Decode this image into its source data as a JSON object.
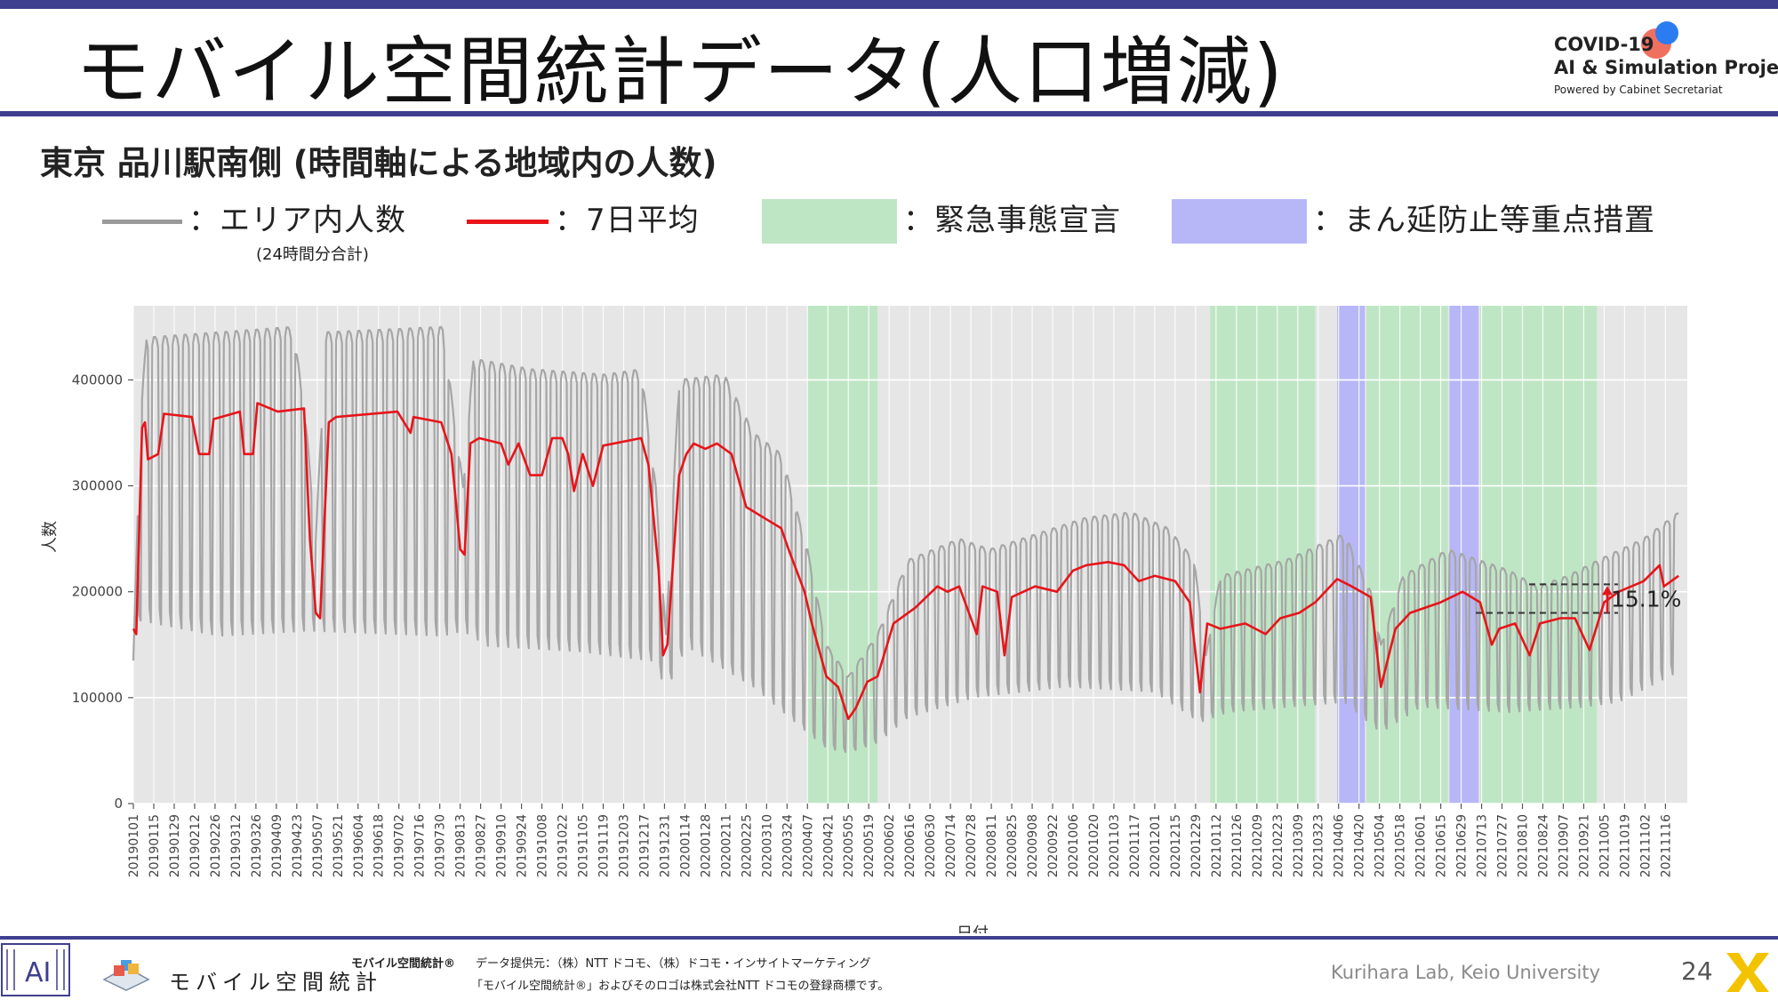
{
  "header": {
    "title": "モバイル空間統計データ(人口増減)",
    "logo_line1": "COVID-19",
    "logo_line2": "AI & Simulation Project",
    "logo_line3": "Powered by Cabinet Secretariat"
  },
  "subtitle": "東京 品川駅南側 (時間軸による地域内の人数)",
  "legend": {
    "area_label": "：エリア内人数",
    "area_sub": "(24時間分合計)",
    "avg_label": "：7日平均",
    "emergency_label": "：緊急事態宣言",
    "priority_label": "：まん延防止等重点措置"
  },
  "colors": {
    "raw_series": "#a6a6a6",
    "avg_series": "#e8141a",
    "emergency": "#bfe6c4",
    "priority": "#b7b7f7",
    "panel": "#e6e6e6",
    "accent": "#3f3f8f"
  },
  "footer": {
    "brand": "モバイル空間統計",
    "brand_small": "モバイル空間統計®",
    "provider": "データ提供元：（株）NTT ドコモ、（株）ドコモ・インサイトマーケティング",
    "trademark": "「モバイル空間統計®」およびそのロゴは株式会社NTT ドコモの登録商標です。",
    "lab": "Kurihara Lab, Keio University",
    "page": "24"
  },
  "chart_data": {
    "type": "line",
    "xlabel": "日付",
    "ylabel": "人数",
    "ylim": [
      0,
      470000
    ],
    "xlim": [
      "20190101",
      "20211201"
    ],
    "yticks": [
      0,
      100000,
      200000,
      300000,
      400000
    ],
    "ytick_labels": [
      "0",
      "100000",
      "200000",
      "300000",
      "400000"
    ],
    "x_tick_labels": [
      "20190101",
      "20190115",
      "20190129",
      "20190212",
      "20190226",
      "20190312",
      "20190326",
      "20190409",
      "20190423",
      "20190507",
      "20190521",
      "20190604",
      "20190618",
      "20190702",
      "20190716",
      "20190730",
      "20190813",
      "20190827",
      "20190910",
      "20190924",
      "20191008",
      "20191022",
      "20191105",
      "20191119",
      "20191203",
      "20191217",
      "20191231",
      "20200114",
      "20200128",
      "20200211",
      "20200225",
      "20200310",
      "20200324",
      "20200407",
      "20200421",
      "20200505",
      "20200519",
      "20200602",
      "20200616",
      "20200630",
      "20200714",
      "20200728",
      "20200811",
      "20200825",
      "20200908",
      "20200922",
      "20201006",
      "20201020",
      "20201103",
      "20201117",
      "20201201",
      "20201215",
      "20201229",
      "20210112",
      "20210126",
      "20210209",
      "20210223",
      "20210309",
      "20210323",
      "20210406",
      "20210420",
      "20210504",
      "20210518",
      "20210601",
      "20210615",
      "20210629",
      "20210713",
      "20210727",
      "20210810",
      "20210824",
      "20210907",
      "20210921",
      "20211005",
      "20211019",
      "20211102",
      "20211116"
    ],
    "grid": true,
    "shaded_periods": [
      {
        "type": "emergency",
        "start": "20200407",
        "end": "20200525"
      },
      {
        "type": "emergency",
        "start": "20210108",
        "end": "20210321"
      },
      {
        "type": "priority",
        "start": "20210405",
        "end": "20210424"
      },
      {
        "type": "emergency",
        "start": "20210425",
        "end": "20210620"
      },
      {
        "type": "priority",
        "start": "20210621",
        "end": "20210711"
      },
      {
        "type": "emergency",
        "start": "20210712",
        "end": "20210930"
      }
    ],
    "series": [
      {
        "name": "エリア内人数",
        "pattern": "weekly",
        "weekday_envelope": [
          [
            "20190101",
            135000
          ],
          [
            "20190106",
            370000
          ],
          [
            "20190110",
            440000
          ],
          [
            "20190301",
            445000
          ],
          [
            "20190420",
            450000
          ],
          [
            "20190428",
            380000
          ],
          [
            "20190506",
            250000
          ],
          [
            "20190513",
            445000
          ],
          [
            "20190801",
            450000
          ],
          [
            "20190815",
            300000
          ],
          [
            "20190822",
            420000
          ],
          [
            "20191001",
            410000
          ],
          [
            "20191120",
            405000
          ],
          [
            "20191215",
            410000
          ],
          [
            "20191225",
            300000
          ],
          [
            "20200101",
            160000
          ],
          [
            "20200110",
            400000
          ],
          [
            "20200210",
            405000
          ],
          [
            "20200301",
            350000
          ],
          [
            "20200320",
            330000
          ],
          [
            "20200407",
            240000
          ],
          [
            "20200420",
            150000
          ],
          [
            "20200505",
            120000
          ],
          [
            "20200525",
            160000
          ],
          [
            "20200615",
            230000
          ],
          [
            "20200720",
            250000
          ],
          [
            "20200810",
            240000
          ],
          [
            "20200901",
            250000
          ],
          [
            "20201015",
            270000
          ],
          [
            "20201115",
            275000
          ],
          [
            "20201210",
            260000
          ],
          [
            "20201228",
            230000
          ],
          [
            "20210105",
            140000
          ],
          [
            "20210115",
            215000
          ],
          [
            "20210301",
            230000
          ],
          [
            "20210410",
            255000
          ],
          [
            "20210428",
            200000
          ],
          [
            "20210505",
            150000
          ],
          [
            "20210520",
            215000
          ],
          [
            "20210620",
            240000
          ],
          [
            "20210801",
            220000
          ],
          [
            "20210820",
            205000
          ],
          [
            "20210910",
            215000
          ],
          [
            "20211001",
            230000
          ],
          [
            "20211101",
            250000
          ],
          [
            "20211125",
            275000
          ]
        ],
        "weekend_envelope": [
          [
            "20190101",
            135000
          ],
          [
            "20190106",
            180000
          ],
          [
            "20190301",
            165000
          ],
          [
            "20190501",
            170000
          ],
          [
            "20190801",
            165000
          ],
          [
            "20190815",
            170000
          ],
          [
            "20190901",
            155000
          ],
          [
            "20191101",
            150000
          ],
          [
            "20191225",
            140000
          ],
          [
            "20200101",
            110000
          ],
          [
            "20200115",
            155000
          ],
          [
            "20200301",
            115000
          ],
          [
            "20200407",
            70000
          ],
          [
            "20200420",
            55000
          ],
          [
            "20200505",
            50000
          ],
          [
            "20200525",
            60000
          ],
          [
            "20200615",
            85000
          ],
          [
            "20200801",
            105000
          ],
          [
            "20201001",
            115000
          ],
          [
            "20201201",
            110000
          ],
          [
            "20210101",
            80000
          ],
          [
            "20210120",
            90000
          ],
          [
            "20210301",
            95000
          ],
          [
            "20210410",
            100000
          ],
          [
            "20210505",
            70000
          ],
          [
            "20210601",
            95000
          ],
          [
            "20210801",
            90000
          ],
          [
            "20210920",
            95000
          ],
          [
            "20211015",
            100000
          ],
          [
            "20211125",
            130000
          ]
        ]
      },
      {
        "name": "7日平均",
        "points": [
          [
            "20190101",
            165000
          ],
          [
            "20190103",
            160000
          ],
          [
            "20190107",
            355000
          ],
          [
            "20190109",
            360000
          ],
          [
            "20190111",
            325000
          ],
          [
            "20190118",
            330000
          ],
          [
            "20190122",
            368000
          ],
          [
            "20190210",
            365000
          ],
          [
            "20190215",
            330000
          ],
          [
            "20190222",
            330000
          ],
          [
            "20190225",
            363000
          ],
          [
            "20190315",
            370000
          ],
          [
            "20190318",
            330000
          ],
          [
            "20190324",
            330000
          ],
          [
            "20190327",
            378000
          ],
          [
            "20190410",
            370000
          ],
          [
            "20190428",
            373000
          ],
          [
            "20190502",
            250000
          ],
          [
            "20190506",
            180000
          ],
          [
            "20190509",
            175000
          ],
          [
            "20190515",
            360000
          ],
          [
            "20190520",
            365000
          ],
          [
            "20190701",
            370000
          ],
          [
            "20190710",
            350000
          ],
          [
            "20190712",
            365000
          ],
          [
            "20190731",
            360000
          ],
          [
            "20190807",
            330000
          ],
          [
            "20190813",
            240000
          ],
          [
            "20190816",
            235000
          ],
          [
            "20190820",
            340000
          ],
          [
            "20190826",
            345000
          ],
          [
            "20190910",
            340000
          ],
          [
            "20190915",
            320000
          ],
          [
            "20190922",
            340000
          ],
          [
            "20190930",
            310000
          ],
          [
            "20191008",
            310000
          ],
          [
            "20191015",
            345000
          ],
          [
            "20191022",
            345000
          ],
          [
            "20191026",
            330000
          ],
          [
            "20191030",
            295000
          ],
          [
            "20191105",
            330000
          ],
          [
            "20191112",
            300000
          ],
          [
            "20191119",
            338000
          ],
          [
            "20191215",
            345000
          ],
          [
            "20191220",
            320000
          ],
          [
            "20191227",
            220000
          ],
          [
            "20191230",
            140000
          ],
          [
            "20200102",
            150000
          ],
          [
            "20200110",
            310000
          ],
          [
            "20200115",
            330000
          ],
          [
            "20200120",
            340000
          ],
          [
            "20200128",
            335000
          ],
          [
            "20200205",
            340000
          ],
          [
            "20200215",
            330000
          ],
          [
            "20200225",
            280000
          ],
          [
            "20200308",
            270000
          ],
          [
            "20200320",
            260000
          ],
          [
            "20200325",
            240000
          ],
          [
            "20200405",
            200000
          ],
          [
            "20200410",
            170000
          ],
          [
            "20200420",
            120000
          ],
          [
            "20200428",
            110000
          ],
          [
            "20200505",
            80000
          ],
          [
            "20200510",
            90000
          ],
          [
            "20200518",
            115000
          ],
          [
            "20200525",
            120000
          ],
          [
            "20200605",
            170000
          ],
          [
            "20200620",
            185000
          ],
          [
            "20200705",
            205000
          ],
          [
            "20200712",
            200000
          ],
          [
            "20200720",
            205000
          ],
          [
            "20200801",
            160000
          ],
          [
            "20200805",
            205000
          ],
          [
            "20200815",
            200000
          ],
          [
            "20200820",
            140000
          ],
          [
            "20200825",
            195000
          ],
          [
            "20200910",
            205000
          ],
          [
            "20200925",
            200000
          ],
          [
            "20201006",
            220000
          ],
          [
            "20201015",
            225000
          ],
          [
            "20201030",
            228000
          ],
          [
            "20201110",
            225000
          ],
          [
            "20201120",
            210000
          ],
          [
            "20201201",
            215000
          ],
          [
            "20201215",
            210000
          ],
          [
            "20201225",
            190000
          ],
          [
            "20210101",
            105000
          ],
          [
            "20210106",
            170000
          ],
          [
            "20210115",
            165000
          ],
          [
            "20210201",
            170000
          ],
          [
            "20210215",
            160000
          ],
          [
            "20210225",
            175000
          ],
          [
            "20210310",
            180000
          ],
          [
            "20210321",
            190000
          ],
          [
            "20210405",
            212000
          ],
          [
            "20210415",
            205000
          ],
          [
            "20210428",
            195000
          ],
          [
            "20210505",
            110000
          ],
          [
            "20210515",
            165000
          ],
          [
            "20210525",
            180000
          ],
          [
            "20210615",
            190000
          ],
          [
            "20210630",
            200000
          ],
          [
            "20210712",
            190000
          ],
          [
            "20210720",
            150000
          ],
          [
            "20210725",
            165000
          ],
          [
            "20210805",
            170000
          ],
          [
            "20210815",
            140000
          ],
          [
            "20210822",
            170000
          ],
          [
            "20210905",
            175000
          ],
          [
            "20210915",
            175000
          ],
          [
            "20210925",
            145000
          ],
          [
            "20211005",
            190000
          ],
          [
            "20211015",
            200000
          ],
          [
            "20211101",
            210000
          ],
          [
            "20211112",
            225000
          ],
          [
            "20211115",
            205000
          ],
          [
            "20211125",
            215000
          ]
        ]
      }
    ],
    "annotation": {
      "label": "15.1%",
      "from_value": 180000,
      "to_value": 207000
    }
  }
}
